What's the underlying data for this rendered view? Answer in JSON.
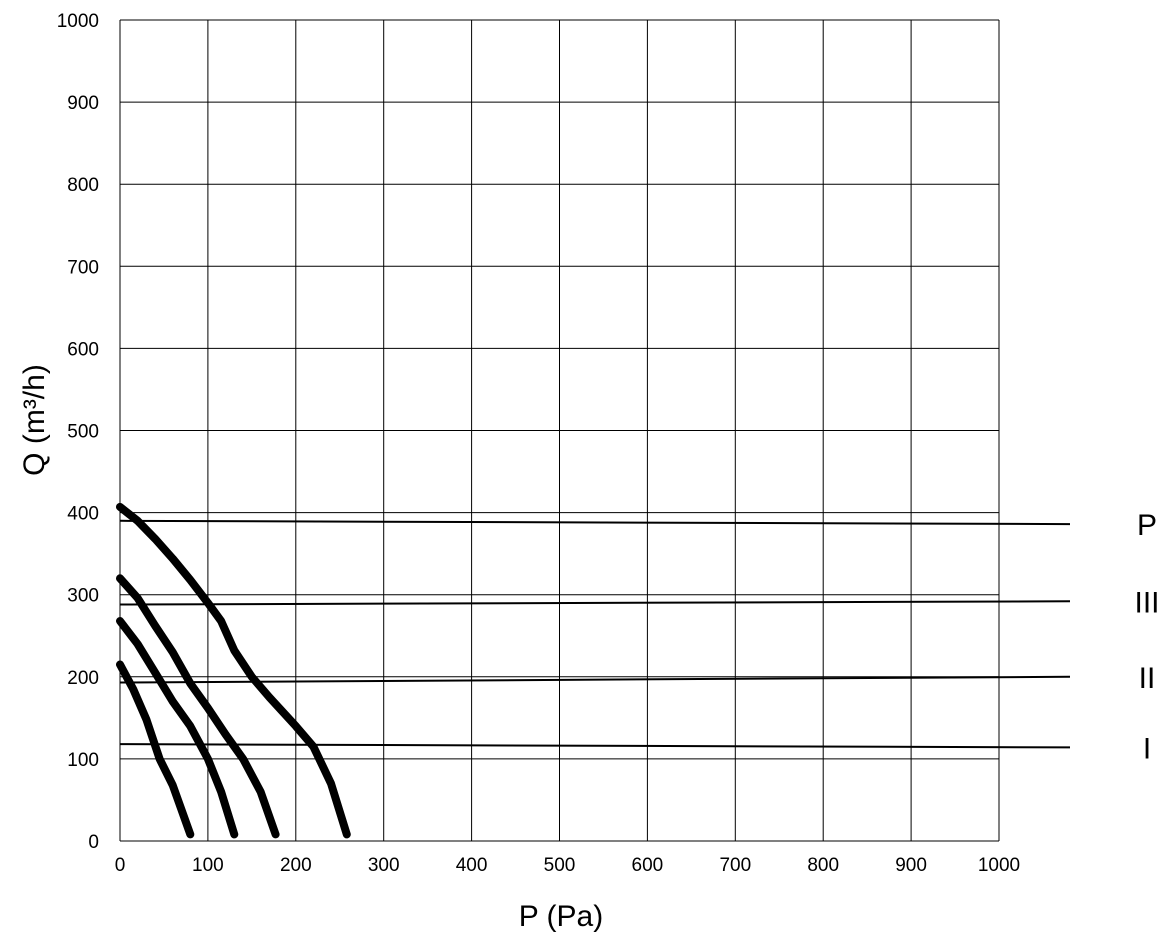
{
  "chart_data": {
    "type": "line",
    "xlabel": "P (Pa)",
    "ylabel": "Q (m³/h)",
    "xlim": [
      0,
      1000
    ],
    "ylim": [
      0,
      1000
    ],
    "grid": true,
    "x_ticks": [
      "0",
      "100",
      "200",
      "300",
      "400",
      "500",
      "600",
      "700",
      "800",
      "900",
      "1000"
    ],
    "y_ticks": [
      "0",
      "100",
      "200",
      "300",
      "400",
      "500",
      "600",
      "700",
      "800",
      "900",
      "1000"
    ],
    "curves": [
      {
        "name": "P",
        "points": [
          [
            0,
            407
          ],
          [
            20,
            390
          ],
          [
            40,
            368
          ],
          [
            60,
            344
          ],
          [
            80,
            318
          ],
          [
            100,
            290
          ],
          [
            115,
            268
          ],
          [
            130,
            232
          ],
          [
            150,
            200
          ],
          [
            170,
            175
          ],
          [
            200,
            140
          ],
          [
            220,
            115
          ],
          [
            240,
            70
          ],
          [
            258,
            8
          ]
        ]
      },
      {
        "name": "III",
        "points": [
          [
            0,
            320
          ],
          [
            20,
            296
          ],
          [
            40,
            262
          ],
          [
            60,
            230
          ],
          [
            80,
            192
          ],
          [
            100,
            162
          ],
          [
            120,
            130
          ],
          [
            140,
            100
          ],
          [
            160,
            60
          ],
          [
            177,
            8
          ]
        ]
      },
      {
        "name": "II",
        "points": [
          [
            0,
            268
          ],
          [
            20,
            240
          ],
          [
            40,
            205
          ],
          [
            60,
            170
          ],
          [
            80,
            140
          ],
          [
            100,
            100
          ],
          [
            115,
            60
          ],
          [
            130,
            8
          ]
        ]
      },
      {
        "name": "I",
        "points": [
          [
            0,
            215
          ],
          [
            15,
            185
          ],
          [
            30,
            148
          ],
          [
            45,
            100
          ],
          [
            60,
            68
          ],
          [
            80,
            8
          ]
        ]
      }
    ],
    "reference_lines": [
      {
        "label": "P",
        "q_at_p0": 390,
        "q_at_end": 386
      },
      {
        "label": "III",
        "q_at_p0": 288,
        "q_at_end": 292
      },
      {
        "label": "II",
        "q_at_p0": 193,
        "q_at_end": 200
      },
      {
        "label": "I",
        "q_at_p0": 118,
        "q_at_end": 114
      }
    ]
  }
}
